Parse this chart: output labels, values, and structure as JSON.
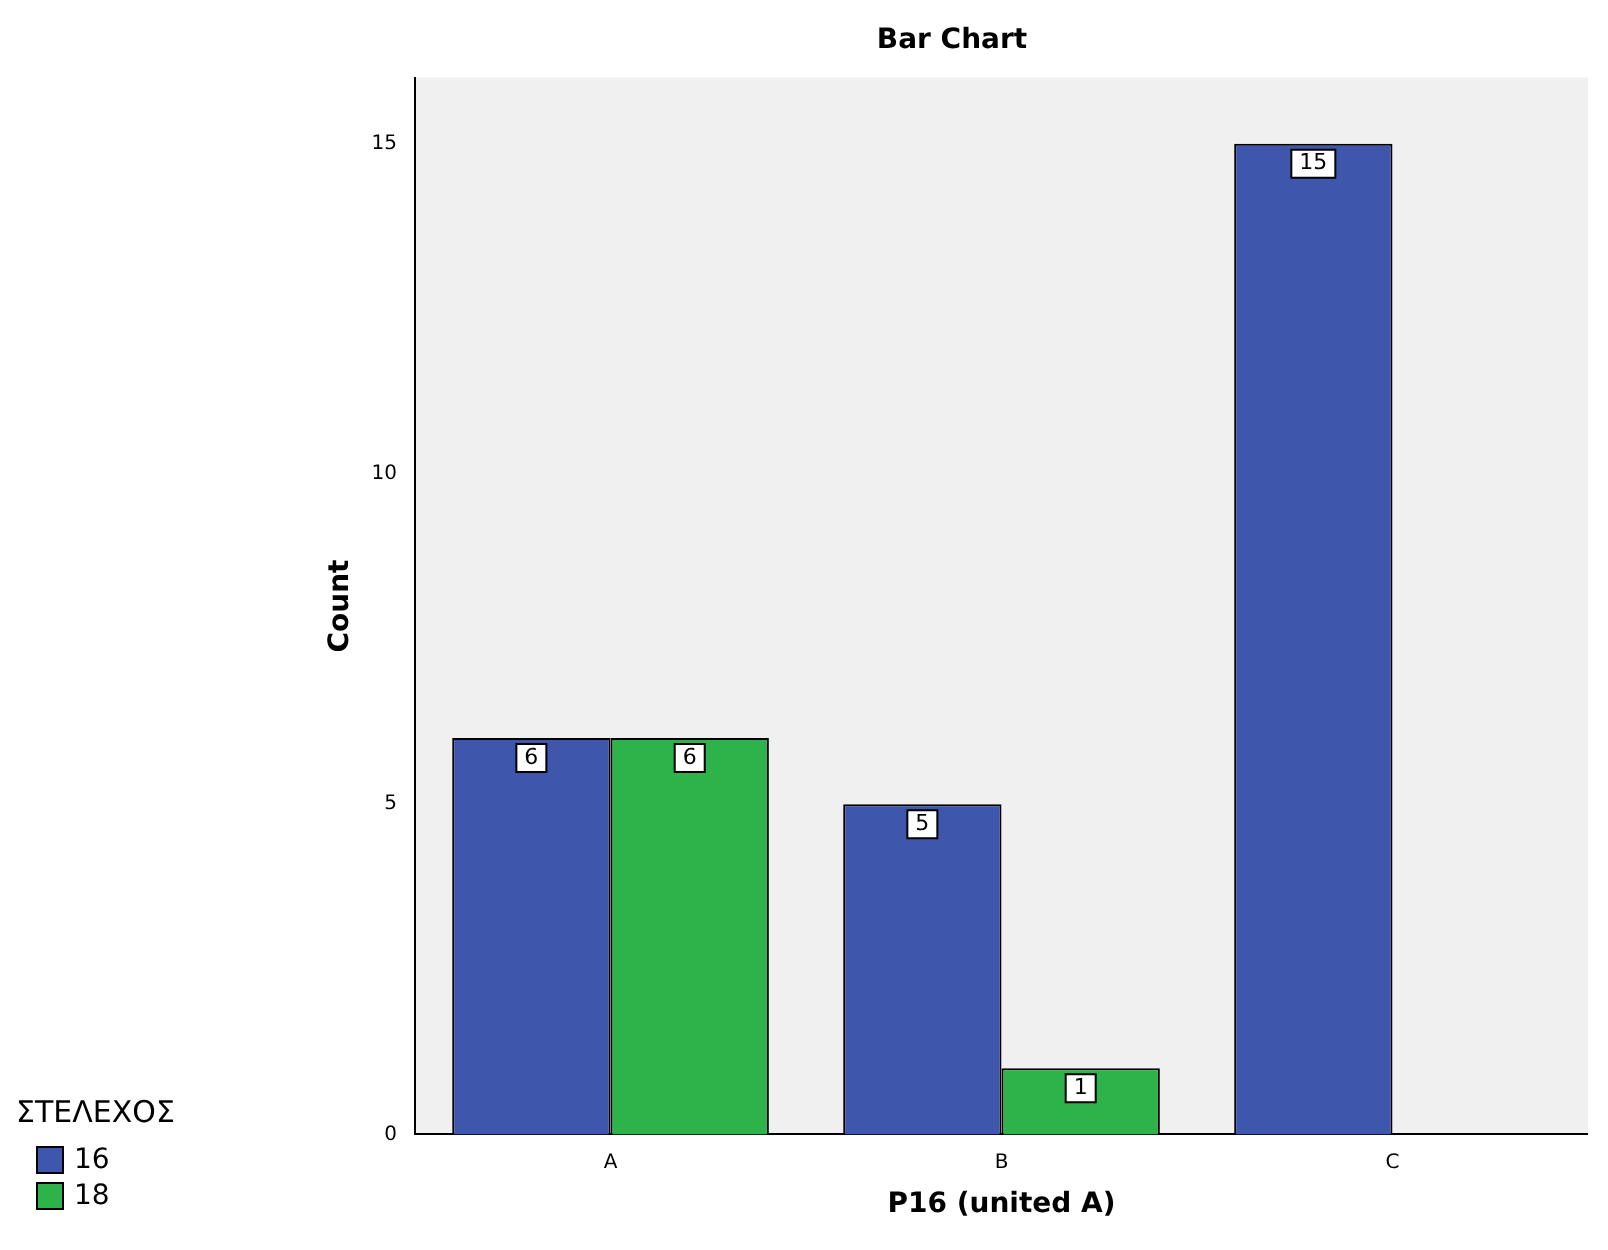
{
  "chart_data": {
    "type": "bar",
    "title": "Bar Chart",
    "xlabel": "P16 (united A)",
    "ylabel": "Count",
    "legend_title": "ΣΤΕΛΕΧΟΣ",
    "categories": [
      "A",
      "B",
      "C"
    ],
    "series": [
      {
        "name": "16",
        "color": "#3e57ad",
        "values": [
          6,
          5,
          15
        ]
      },
      {
        "name": "18",
        "color": "#2db34a",
        "values": [
          6,
          1,
          null
        ]
      }
    ],
    "ylim": [
      0,
      16
    ],
    "yticks": [
      0,
      5,
      10,
      15
    ],
    "grid": false,
    "legend": "bottom left",
    "data_labels": true
  }
}
